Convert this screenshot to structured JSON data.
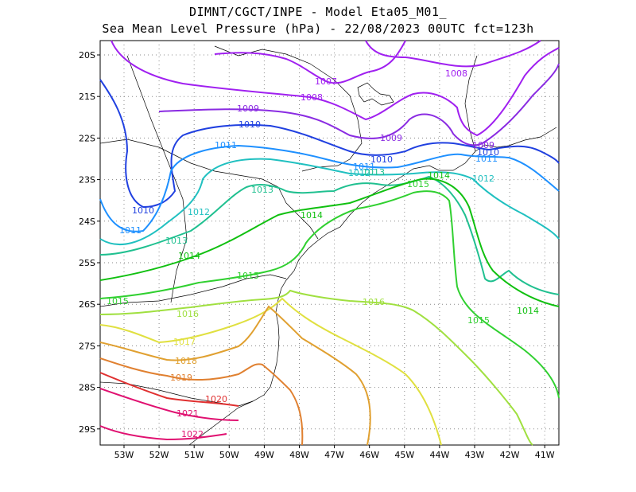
{
  "title": {
    "line1": "DIMNT/CGCT/INPE -  Model Eta05_M01_",
    "line2": "Sea Mean Level Pressure (hPa) - 22/08/2023 00UTC fct=123h"
  },
  "axes": {
    "lat_labels": [
      "20S",
      "21S",
      "22S",
      "23S",
      "24S",
      "25S",
      "26S",
      "27S",
      "28S",
      "29S"
    ],
    "lon_labels": [
      "53W",
      "52W",
      "51W",
      "50W",
      "49W",
      "48W",
      "47W",
      "46W",
      "45W",
      "44W",
      "43W",
      "42W",
      "41W"
    ],
    "lat_range": [
      -29.4,
      -19.7
    ],
    "lon_range": [
      -53.6,
      -40.5
    ]
  },
  "isobars": [
    {
      "value": "1007",
      "color": "#a020f0"
    },
    {
      "value": "1008",
      "color": "#a020f0"
    },
    {
      "value": "1009",
      "color": "#8a2be2"
    },
    {
      "value": "1010",
      "color": "#2040e0"
    },
    {
      "value": "1011",
      "color": "#1e90ff"
    },
    {
      "value": "1012",
      "color": "#20c0c0"
    },
    {
      "value": "1013",
      "color": "#20c090"
    },
    {
      "value": "1014",
      "color": "#10c010"
    },
    {
      "value": "1015",
      "color": "#30d030"
    },
    {
      "value": "1016",
      "color": "#a0e040"
    },
    {
      "value": "1017",
      "color": "#e0e040"
    },
    {
      "value": "1018",
      "color": "#e0a030"
    },
    {
      "value": "1019",
      "color": "#e08030"
    },
    {
      "value": "1020",
      "color": "#e03030"
    },
    {
      "value": "1021",
      "color": "#e01070"
    },
    {
      "value": "1022",
      "color": "#e01070"
    }
  ]
}
